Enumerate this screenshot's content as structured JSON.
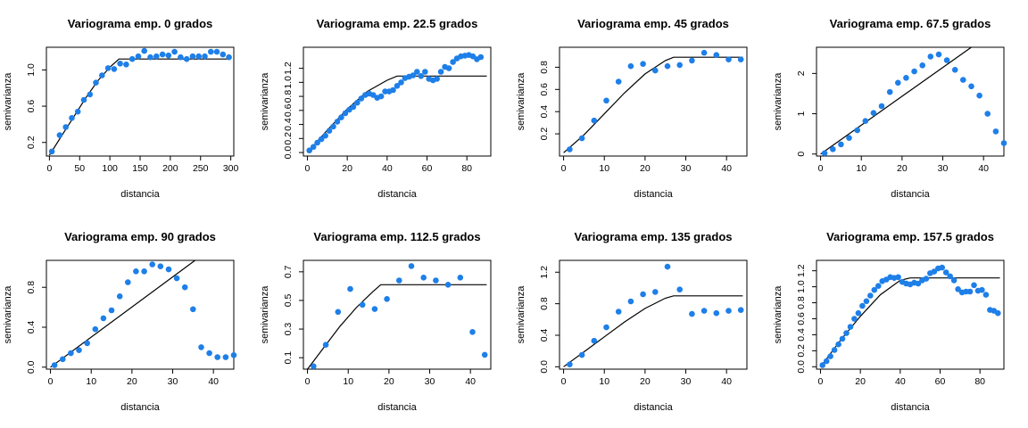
{
  "figure": {
    "point_color": "#1e7fe8",
    "model_color": "#000000"
  },
  "chart_data": [
    {
      "type": "scatter",
      "title": "Variograma emp. 0 grados",
      "xlabel": "distancia",
      "ylabel": "semivarianza",
      "xlim": [
        -5,
        305
      ],
      "ylim": [
        0.05,
        1.25
      ],
      "xticks": [
        0,
        50,
        100,
        150,
        200,
        250,
        300
      ],
      "yticks": [
        0.2,
        0.6,
        1.0
      ],
      "points": [
        [
          4,
          0.1
        ],
        [
          17,
          0.28
        ],
        [
          27,
          0.37
        ],
        [
          37,
          0.47
        ],
        [
          47,
          0.54
        ],
        [
          57,
          0.67
        ],
        [
          67,
          0.73
        ],
        [
          77,
          0.86
        ],
        [
          87,
          0.94
        ],
        [
          97,
          1.02
        ],
        [
          107,
          1.01
        ],
        [
          117,
          1.07
        ],
        [
          127,
          1.06
        ],
        [
          137,
          1.12
        ],
        [
          147,
          1.15
        ],
        [
          157,
          1.21
        ],
        [
          167,
          1.14
        ],
        [
          177,
          1.15
        ],
        [
          187,
          1.17
        ],
        [
          197,
          1.16
        ],
        [
          207,
          1.2
        ],
        [
          217,
          1.14
        ],
        [
          227,
          1.12
        ],
        [
          237,
          1.15
        ],
        [
          247,
          1.15
        ],
        [
          257,
          1.15
        ],
        [
          267,
          1.2
        ],
        [
          277,
          1.2
        ],
        [
          287,
          1.17
        ],
        [
          297,
          1.14
        ]
      ],
      "model": [
        [
          0,
          0.06
        ],
        [
          20,
          0.27
        ],
        [
          40,
          0.48
        ],
        [
          60,
          0.69
        ],
        [
          80,
          0.88
        ],
        [
          100,
          1.03
        ],
        [
          115,
          1.12
        ],
        [
          300,
          1.12
        ]
      ]
    },
    {
      "type": "scatter",
      "title": "Variograma emp. 22.5 grados",
      "xlabel": "distancia",
      "ylabel": "semivarianza",
      "xlim": [
        -2,
        92
      ],
      "ylim": [
        -0.05,
        1.5
      ],
      "xticks": [
        0,
        20,
        40,
        60,
        80
      ],
      "yticks": [
        0.0,
        0.2,
        0.4,
        0.6,
        0.8,
        1.0,
        1.2
      ],
      "points": [
        [
          1,
          0.03
        ],
        [
          3,
          0.08
        ],
        [
          5,
          0.14
        ],
        [
          7,
          0.19
        ],
        [
          9,
          0.24
        ],
        [
          11,
          0.31
        ],
        [
          13,
          0.37
        ],
        [
          15,
          0.44
        ],
        [
          17,
          0.5
        ],
        [
          19,
          0.56
        ],
        [
          21,
          0.61
        ],
        [
          23,
          0.65
        ],
        [
          25,
          0.71
        ],
        [
          27,
          0.77
        ],
        [
          29,
          0.82
        ],
        [
          31,
          0.84
        ],
        [
          33,
          0.82
        ],
        [
          35,
          0.78
        ],
        [
          37,
          0.8
        ],
        [
          39,
          0.87
        ],
        [
          41,
          0.87
        ],
        [
          43,
          0.89
        ],
        [
          45,
          0.95
        ],
        [
          47,
          1.0
        ],
        [
          49,
          1.06
        ],
        [
          51,
          1.08
        ],
        [
          53,
          1.1
        ],
        [
          55,
          1.15
        ],
        [
          57,
          1.09
        ],
        [
          59,
          1.15
        ],
        [
          61,
          1.05
        ],
        [
          63,
          1.03
        ],
        [
          65,
          1.05
        ],
        [
          67,
          1.15
        ],
        [
          69,
          1.22
        ],
        [
          71,
          1.2
        ],
        [
          73,
          1.29
        ],
        [
          75,
          1.34
        ],
        [
          77,
          1.37
        ],
        [
          79,
          1.38
        ],
        [
          81,
          1.39
        ],
        [
          83,
          1.37
        ],
        [
          85,
          1.33
        ],
        [
          87,
          1.36
        ]
      ],
      "model": [
        [
          0,
          0.0
        ],
        [
          10,
          0.32
        ],
        [
          20,
          0.62
        ],
        [
          30,
          0.87
        ],
        [
          40,
          1.03
        ],
        [
          45,
          1.09
        ],
        [
          90,
          1.09
        ]
      ]
    },
    {
      "type": "scatter",
      "title": "Variograma emp. 45 grados",
      "xlabel": "distancia",
      "ylabel": "semivarianza",
      "xlim": [
        -1,
        45
      ],
      "ylim": [
        0.0,
        0.98
      ],
      "xticks": [
        0,
        10,
        20,
        30,
        40
      ],
      "yticks": [
        0.2,
        0.4,
        0.6,
        0.8
      ],
      "points": [
        [
          1.5,
          0.06
        ],
        [
          4.5,
          0.16
        ],
        [
          7.5,
          0.32
        ],
        [
          10.5,
          0.5
        ],
        [
          13.5,
          0.67
        ],
        [
          16.5,
          0.81
        ],
        [
          19.5,
          0.83
        ],
        [
          22.5,
          0.77
        ],
        [
          25.5,
          0.81
        ],
        [
          28.5,
          0.82
        ],
        [
          31.5,
          0.86
        ],
        [
          34.5,
          0.93
        ],
        [
          37.5,
          0.91
        ],
        [
          40.5,
          0.87
        ],
        [
          43.5,
          0.87
        ]
      ],
      "model": [
        [
          0,
          0.03
        ],
        [
          5,
          0.19
        ],
        [
          10,
          0.38
        ],
        [
          15,
          0.57
        ],
        [
          20,
          0.74
        ],
        [
          25,
          0.86
        ],
        [
          27,
          0.89
        ],
        [
          44,
          0.89
        ]
      ]
    },
    {
      "type": "scatter",
      "title": "Variograma emp. 67.5 grados",
      "xlabel": "distancia",
      "ylabel": "semivarianza",
      "xlim": [
        -1,
        45
      ],
      "ylim": [
        -0.05,
        2.65
      ],
      "xticks": [
        0,
        10,
        20,
        30,
        40
      ],
      "yticks": [
        0.0,
        1.0,
        2.0
      ],
      "points": [
        [
          1,
          0.02
        ],
        [
          3,
          0.12
        ],
        [
          5,
          0.24
        ],
        [
          7,
          0.4
        ],
        [
          9,
          0.59
        ],
        [
          11,
          0.82
        ],
        [
          13,
          1.02
        ],
        [
          15,
          1.19
        ],
        [
          17,
          1.54
        ],
        [
          19,
          1.77
        ],
        [
          21,
          1.89
        ],
        [
          23,
          2.05
        ],
        [
          25,
          2.2
        ],
        [
          27,
          2.42
        ],
        [
          29,
          2.47
        ],
        [
          31,
          2.33
        ],
        [
          33,
          2.09
        ],
        [
          35,
          1.84
        ],
        [
          37,
          1.68
        ],
        [
          39,
          1.45
        ],
        [
          41,
          1.0
        ],
        [
          43,
          0.56
        ],
        [
          45,
          0.27
        ]
      ],
      "model": [
        [
          0,
          0.0
        ],
        [
          37,
          2.65
        ]
      ]
    },
    {
      "type": "scatter",
      "title": "Variograma emp. 90 grados",
      "xlabel": "distancia",
      "ylabel": "semivarianza",
      "xlim": [
        -1,
        45
      ],
      "ylim": [
        -0.02,
        1.07
      ],
      "xticks": [
        0,
        10,
        20,
        30,
        40
      ],
      "yticks": [
        0.0,
        0.4,
        0.8
      ],
      "points": [
        [
          1,
          0.02
        ],
        [
          3,
          0.08
        ],
        [
          5,
          0.14
        ],
        [
          7,
          0.17
        ],
        [
          9,
          0.24
        ],
        [
          11,
          0.38
        ],
        [
          13,
          0.49
        ],
        [
          15,
          0.57
        ],
        [
          17,
          0.71
        ],
        [
          19,
          0.85
        ],
        [
          21,
          0.96
        ],
        [
          23,
          0.96
        ],
        [
          25,
          1.03
        ],
        [
          27,
          1.01
        ],
        [
          29,
          0.98
        ],
        [
          31,
          0.89
        ],
        [
          33,
          0.8
        ],
        [
          35,
          0.58
        ],
        [
          37,
          0.2
        ],
        [
          39,
          0.14
        ],
        [
          41,
          0.1
        ],
        [
          43,
          0.1
        ],
        [
          45,
          0.12
        ]
      ],
      "model": [
        [
          0,
          0.0
        ],
        [
          35.5,
          1.07
        ]
      ]
    },
    {
      "type": "scatter",
      "title": "Variograma emp. 112.5 grados",
      "xlabel": "distancia",
      "ylabel": "semivarianza",
      "xlim": [
        -1,
        45
      ],
      "ylim": [
        0.02,
        0.78
      ],
      "xticks": [
        0,
        10,
        20,
        30,
        40
      ],
      "yticks": [
        0.1,
        0.3,
        0.5,
        0.7
      ],
      "points": [
        [
          1.5,
          0.04
        ],
        [
          4.5,
          0.19
        ],
        [
          7.5,
          0.42
        ],
        [
          10.5,
          0.58
        ],
        [
          13.5,
          0.47
        ],
        [
          16.5,
          0.44
        ],
        [
          19.5,
          0.51
        ],
        [
          22.5,
          0.64
        ],
        [
          25.5,
          0.74
        ],
        [
          28.5,
          0.66
        ],
        [
          31.5,
          0.64
        ],
        [
          34.5,
          0.61
        ],
        [
          37.5,
          0.66
        ],
        [
          40.5,
          0.28
        ],
        [
          43.5,
          0.12
        ]
      ],
      "model": [
        [
          0,
          0.02
        ],
        [
          4,
          0.17
        ],
        [
          8,
          0.32
        ],
        [
          12,
          0.45
        ],
        [
          16,
          0.56
        ],
        [
          18,
          0.61
        ],
        [
          44,
          0.61
        ]
      ]
    },
    {
      "type": "scatter",
      "title": "Variograma emp. 135 grados",
      "xlabel": "distancia",
      "ylabel": "semivarianza",
      "xlim": [
        -1,
        45
      ],
      "ylim": [
        -0.03,
        1.35
      ],
      "xticks": [
        0,
        10,
        20,
        30,
        40
      ],
      "yticks": [
        0.0,
        0.4,
        0.8,
        1.2
      ],
      "points": [
        [
          1.5,
          0.03
        ],
        [
          4.5,
          0.15
        ],
        [
          7.5,
          0.33
        ],
        [
          10.5,
          0.5
        ],
        [
          13.5,
          0.7
        ],
        [
          16.5,
          0.83
        ],
        [
          19.5,
          0.92
        ],
        [
          22.5,
          0.95
        ],
        [
          25.5,
          1.27
        ],
        [
          28.5,
          0.98
        ],
        [
          31.5,
          0.67
        ],
        [
          34.5,
          0.71
        ],
        [
          37.5,
          0.68
        ],
        [
          40.5,
          0.71
        ],
        [
          43.5,
          0.72
        ]
      ],
      "model": [
        [
          0,
          0.0
        ],
        [
          5,
          0.19
        ],
        [
          10,
          0.38
        ],
        [
          15,
          0.57
        ],
        [
          20,
          0.74
        ],
        [
          25,
          0.87
        ],
        [
          27,
          0.9
        ],
        [
          44,
          0.9
        ]
      ]
    },
    {
      "type": "scatter",
      "title": "Variograma emp. 157.5 grados",
      "xlabel": "distancia",
      "ylabel": "semivarianza",
      "xlim": [
        -2,
        92
      ],
      "ylim": [
        -0.03,
        1.33
      ],
      "xticks": [
        0,
        20,
        40,
        60,
        80
      ],
      "yticks": [
        0.0,
        0.2,
        0.4,
        0.6,
        0.8,
        1.0,
        1.2
      ],
      "points": [
        [
          1,
          0.02
        ],
        [
          3,
          0.07
        ],
        [
          5,
          0.13
        ],
        [
          7,
          0.21
        ],
        [
          9,
          0.28
        ],
        [
          11,
          0.35
        ],
        [
          13,
          0.42
        ],
        [
          15,
          0.5
        ],
        [
          17,
          0.6
        ],
        [
          19,
          0.67
        ],
        [
          21,
          0.76
        ],
        [
          23,
          0.82
        ],
        [
          25,
          0.89
        ],
        [
          27,
          0.96
        ],
        [
          29,
          1.01
        ],
        [
          31,
          1.07
        ],
        [
          33,
          1.09
        ],
        [
          35,
          1.12
        ],
        [
          37,
          1.11
        ],
        [
          39,
          1.12
        ],
        [
          41,
          1.06
        ],
        [
          43,
          1.04
        ],
        [
          45,
          1.03
        ],
        [
          47,
          1.05
        ],
        [
          49,
          1.04
        ],
        [
          51,
          1.08
        ],
        [
          53,
          1.1
        ],
        [
          55,
          1.17
        ],
        [
          57,
          1.19
        ],
        [
          59,
          1.23
        ],
        [
          61,
          1.24
        ],
        [
          63,
          1.18
        ],
        [
          65,
          1.13
        ],
        [
          67,
          1.08
        ],
        [
          69,
          0.97
        ],
        [
          71,
          0.93
        ],
        [
          73,
          0.94
        ],
        [
          75,
          0.94
        ],
        [
          77,
          1.02
        ],
        [
          79,
          0.95
        ],
        [
          81,
          0.96
        ],
        [
          83,
          0.9
        ],
        [
          85,
          0.71
        ],
        [
          87,
          0.7
        ],
        [
          89,
          0.67
        ]
      ],
      "model": [
        [
          0,
          0.0
        ],
        [
          10,
          0.33
        ],
        [
          20,
          0.63
        ],
        [
          30,
          0.9
        ],
        [
          40,
          1.08
        ],
        [
          45,
          1.11
        ],
        [
          90,
          1.11
        ]
      ]
    }
  ]
}
